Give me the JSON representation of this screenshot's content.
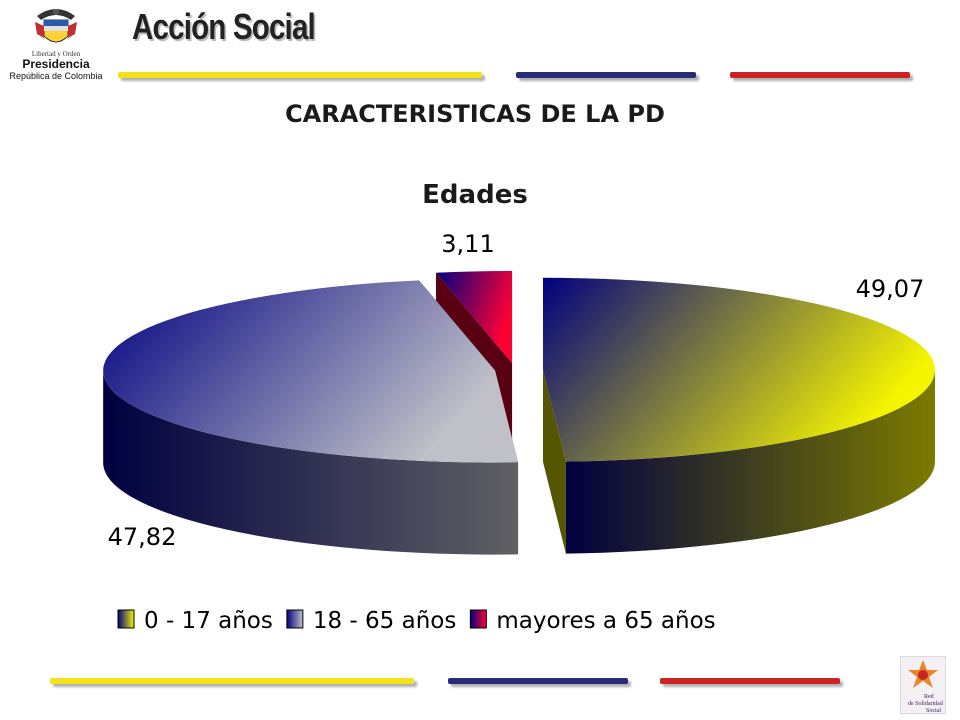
{
  "header": {
    "logo_motto": "Libertad y Orden",
    "logo_main": "Presidencia",
    "logo_sub": "República de Colombia",
    "brand": "Acción Social"
  },
  "footer": {
    "seal_text": [
      "Red",
      "de Solidaridad",
      "Social"
    ]
  },
  "colors": {
    "stripe_yellow": "#f2e21a",
    "stripe_blue": "#2a2a7a",
    "stripe_red": "#cc2222"
  },
  "chart_data": {
    "type": "pie",
    "title": "CARACTERISTICAS DE LA PD",
    "subtitle": "Edades",
    "legend_position": "bottom",
    "categories": [
      "0 - 17 años",
      "18 - 65 años",
      "mayores a 65 años"
    ],
    "values": [
      49.07,
      47.82,
      3.11
    ],
    "value_labels": [
      "49,07",
      "47,82",
      "3,11"
    ],
    "colors": [
      "#f5f500",
      "#c0c0c8",
      "#ff0033"
    ],
    "gradient_start": "#000080"
  }
}
